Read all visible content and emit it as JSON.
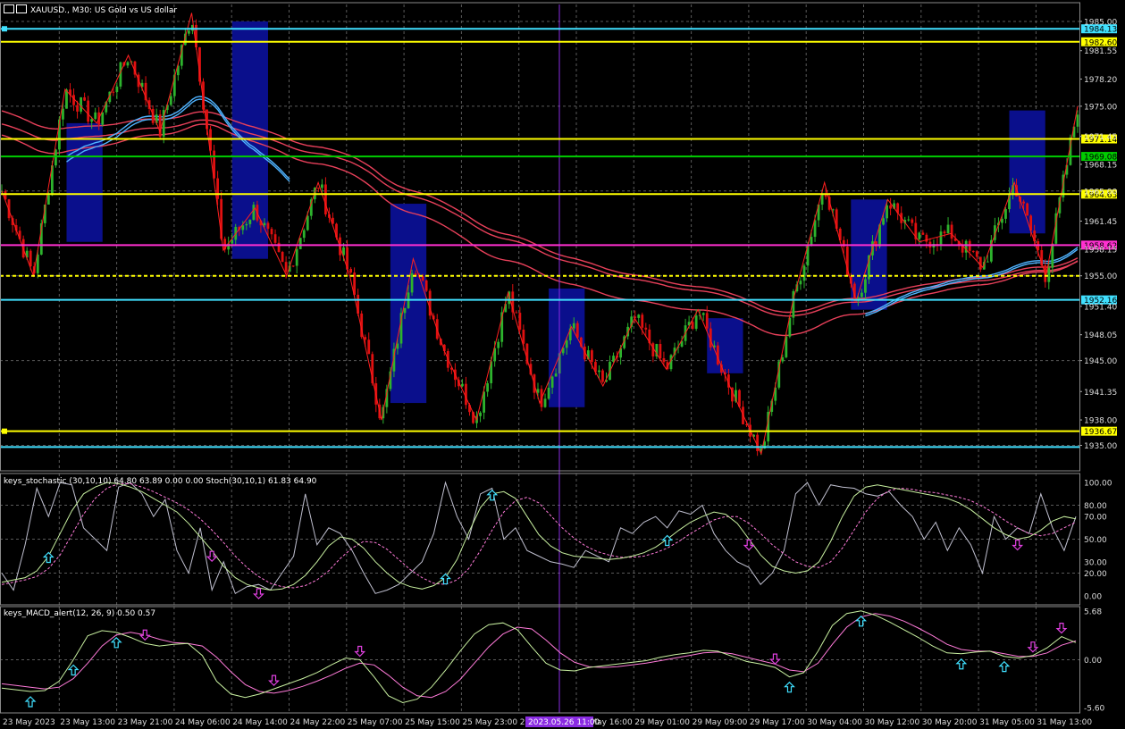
{
  "header": {
    "symbol": "XAUUSD.",
    "timeframe": "M30",
    "description": "US Gold vs US dollar",
    "title_sep": ", ",
    "desc_sep": ":  "
  },
  "colors": {
    "background": "#000000",
    "bull": "#2db32d",
    "bear": "#e01010",
    "ma_red": "#e8405a",
    "ma_blue": "#4fb3ff",
    "box": "#0a0f8c",
    "yellow_line": "#ffff00",
    "green_line": "#00cc00",
    "magenta_line": "#ff30d0",
    "cyan_line": "#40e0ff",
    "crosshair": "#8a2be2",
    "stoch_main": "#c8f0a0",
    "stoch_signal": "#ff7ad9",
    "stoch_raw": "#c0c0d0",
    "macd_main": "#c8f0a0",
    "macd_signal": "#ff7ad9",
    "arrow_up": "#40e0ff",
    "arrow_down": "#e040e0"
  },
  "chart_data": [
    {
      "type": "candlestick",
      "ylim": [
        1932,
        1987
      ],
      "y_ticks": [
        "1985.00",
        "1981.55",
        "1978.20",
        "1975.00",
        "1971.45",
        "1968.15",
        "1965.00",
        "1961.45",
        "1958.15",
        "1955.00",
        "1951.40",
        "1948.05",
        "1945.00",
        "1941.35",
        "1938.00",
        "1935.00"
      ],
      "x_ticks": [
        "23 May 2023",
        "23 May 13:00",
        "23 May 21:00",
        "24 May 06:00",
        "24 May 14:00",
        "24 May 22:00",
        "25 May 07:00",
        "25 May 15:00",
        "25 May 23:00",
        "26 May 08:00",
        "26 May 16:00",
        "29 May 01:00",
        "29 May 09:00",
        "29 May 17:00",
        "30 May 04:00",
        "30 May 12:00",
        "30 May 20:00",
        "31 May 05:00",
        "31 May 13:00"
      ],
      "crosshair_label": "2023.05.26 11:00",
      "zigzag": [
        1965,
        1955,
        1977,
        1973,
        1981,
        1972,
        1986,
        1958,
        1963,
        1955,
        1966,
        1955,
        1938,
        1957,
        1946,
        1938,
        1953,
        1940,
        1949,
        1942,
        1950,
        1944,
        1951,
        1942,
        1934,
        1952,
        1966,
        1952,
        1964,
        1959,
        1960,
        1956,
        1966,
        1955,
        1975
      ],
      "h_levels": [
        {
          "price": 1984.13,
          "label": "1984.13",
          "color": "#40e0ff",
          "label_bg": "#40e0ff",
          "label_color": "#000000"
        },
        {
          "price": 1982.6,
          "label": "1982.60",
          "color": "#ffff00",
          "label_bg": "#ffff00",
          "label_color": "#000000"
        },
        {
          "price": 1971.14,
          "label": "1971.14",
          "color": "#ffff00",
          "label_bg": "#ffff00",
          "label_color": "#000000"
        },
        {
          "price": 1969.08,
          "label": "1969.08",
          "color": "#00cc00",
          "label_bg": "#00cc00",
          "label_color": "#000000"
        },
        {
          "price": 1964.63,
          "label": "1964.63",
          "color": "#ffff00",
          "label_bg": "#ffff00",
          "label_color": "#000000"
        },
        {
          "price": 1958.62,
          "label": "1958.62",
          "color": "#ff30d0",
          "label_bg": "#ff30d0",
          "label_color": "#000000"
        },
        {
          "price": 1955.0,
          "label": "",
          "color": "#ffff00",
          "label_bg": "",
          "label_color": "",
          "dashed": true
        },
        {
          "price": 1952.16,
          "label": "1952.16",
          "color": "#40e0ff",
          "label_bg": "#40e0ff",
          "label_color": "#000000"
        },
        {
          "price": 1936.67,
          "label": "1936.67",
          "color": "#ffff00",
          "label_bg": "#ffff00",
          "label_color": "#000000"
        },
        {
          "price": 1934.8,
          "label": "",
          "color": "#40e0ff",
          "label_bg": "",
          "label_color": ""
        }
      ],
      "boxes": [
        {
          "from_bar": 18,
          "to_bar": 28,
          "high": 1973,
          "low": 1959
        },
        {
          "from_bar": 64,
          "to_bar": 74,
          "high": 1985,
          "low": 1957
        },
        {
          "from_bar": 108,
          "to_bar": 118,
          "high": 1963.5,
          "low": 1940
        },
        {
          "from_bar": 152,
          "to_bar": 162,
          "high": 1953.5,
          "low": 1939.5
        },
        {
          "from_bar": 196,
          "to_bar": 206,
          "high": 1950,
          "low": 1943.5
        },
        {
          "from_bar": 236,
          "to_bar": 246,
          "high": 1964,
          "low": 1951
        },
        {
          "from_bar": 280,
          "to_bar": 290,
          "high": 1974.5,
          "low": 1960
        }
      ]
    },
    {
      "type": "line",
      "name": "keys_stochastic (30,10,10) 64.80 63.89 0.00 0.00 Stoch(30,10,1) 61.83 64.90",
      "ylim": [
        -8,
        108
      ],
      "y_ticks": [
        "100.00",
        "80.00",
        "70.00",
        "50.00",
        "30.00",
        "20.00",
        "0.00"
      ],
      "main": [
        12,
        14,
        16,
        22,
        35,
        55,
        75,
        90,
        96,
        100,
        99,
        96,
        92,
        86,
        80,
        74,
        64,
        52,
        40,
        26,
        16,
        10,
        7,
        5,
        6,
        10,
        18,
        30,
        44,
        52,
        50,
        42,
        30,
        20,
        12,
        8,
        6,
        9,
        16,
        32,
        56,
        78,
        90,
        92,
        86,
        70,
        54,
        44,
        38,
        35,
        34,
        33,
        32,
        33,
        35,
        38,
        43,
        50,
        58,
        65,
        70,
        74,
        72,
        64,
        50,
        36,
        26,
        22,
        20,
        22,
        30,
        48,
        70,
        88,
        96,
        98,
        96,
        94,
        92,
        90,
        88,
        86,
        82,
        76,
        68,
        60,
        54,
        50,
        52,
        58,
        66,
        70,
        68
      ],
      "signal": [
        10,
        12,
        14,
        17,
        24,
        36,
        54,
        72,
        86,
        95,
        99,
        99,
        96,
        92,
        87,
        82,
        76,
        68,
        58,
        47,
        35,
        25,
        17,
        11,
        8,
        7,
        9,
        14,
        22,
        33,
        42,
        48,
        47,
        41,
        32,
        23,
        16,
        11,
        10,
        14,
        24,
        40,
        58,
        74,
        84,
        87,
        82,
        71,
        60,
        51,
        44,
        39,
        36,
        34,
        34,
        35,
        38,
        42,
        48,
        55,
        61,
        67,
        70,
        70,
        64,
        55,
        45,
        37,
        30,
        26,
        25,
        30,
        42,
        58,
        74,
        86,
        93,
        95,
        94,
        92,
        91,
        89,
        87,
        84,
        79,
        73,
        66,
        60,
        55,
        53,
        55,
        60,
        65
      ],
      "raw": [
        20,
        5,
        45,
        95,
        70,
        100,
        98,
        60,
        50,
        40,
        96,
        100,
        90,
        70,
        85,
        40,
        20,
        60,
        5,
        30,
        2,
        8,
        10,
        5,
        20,
        35,
        90,
        45,
        60,
        55,
        40,
        20,
        2,
        5,
        10,
        20,
        30,
        55,
        100,
        70,
        50,
        90,
        95,
        50,
        60,
        40,
        35,
        30,
        28,
        25,
        40,
        35,
        30,
        60,
        55,
        65,
        70,
        60,
        75,
        72,
        80,
        55,
        40,
        30,
        25,
        10,
        20,
        40,
        90,
        100,
        80,
        98,
        96,
        95,
        90,
        88,
        92,
        80,
        70,
        50,
        65,
        40,
        60,
        45,
        20,
        70,
        50,
        60,
        55,
        90,
        60,
        40,
        70
      ],
      "arrows_up": [
        4,
        38,
        42,
        57,
        98,
        102,
        135
      ],
      "arrows_down": [
        18,
        22,
        64,
        87,
        106,
        110
      ]
    },
    {
      "type": "line",
      "name": "keys_MACD_alert(12, 26, 9) 0.50 0.57",
      "ylim": [
        -6.2,
        6.2
      ],
      "y_ticks": [
        "5.68",
        "0.00",
        "-5.60"
      ],
      "main": [
        -3.3,
        -3.5,
        -3.7,
        -3.6,
        -2.5,
        0.0,
        2.8,
        3.4,
        3.2,
        2.6,
        1.9,
        1.6,
        1.8,
        1.9,
        0.5,
        -2.5,
        -4.0,
        -4.4,
        -4.0,
        -3.4,
        -2.8,
        -2.2,
        -1.5,
        -0.6,
        0.2,
        0.0,
        -2.0,
        -4.2,
        -5.0,
        -4.6,
        -3.2,
        -1.2,
        1.0,
        3.0,
        4.1,
        4.3,
        3.5,
        1.5,
        -0.4,
        -1.2,
        -1.3,
        -0.9,
        -0.7,
        -0.5,
        -0.3,
        -0.1,
        0.3,
        0.6,
        0.8,
        1.1,
        1.0,
        0.4,
        -0.2,
        -0.5,
        -0.9,
        -2.0,
        -1.5,
        1.0,
        4.0,
        5.4,
        5.7,
        5.2,
        4.4,
        3.5,
        2.6,
        1.6,
        0.8,
        0.7,
        0.9,
        1.0,
        0.4,
        0.2,
        0.5,
        1.4,
        2.7,
        2.0
      ],
      "signal": [
        -2.8,
        -3.0,
        -3.2,
        -3.4,
        -3.2,
        -2.2,
        -0.4,
        1.6,
        2.9,
        3.2,
        2.9,
        2.4,
        2.0,
        1.9,
        1.6,
        0.3,
        -1.4,
        -2.9,
        -3.7,
        -3.9,
        -3.6,
        -3.1,
        -2.5,
        -1.8,
        -1.0,
        -0.4,
        -0.6,
        -1.8,
        -3.2,
        -4.2,
        -4.4,
        -3.7,
        -2.3,
        -0.4,
        1.5,
        3.0,
        3.8,
        3.6,
        2.3,
        0.8,
        -0.3,
        -0.8,
        -0.9,
        -0.8,
        -0.6,
        -0.4,
        -0.1,
        0.2,
        0.5,
        0.8,
        0.9,
        0.7,
        0.3,
        -0.1,
        -0.5,
        -1.2,
        -1.4,
        -0.4,
        1.8,
        3.8,
        5.0,
        5.4,
        5.1,
        4.5,
        3.7,
        2.8,
        1.8,
        1.2,
        1.0,
        1.0,
        0.7,
        0.4,
        0.4,
        0.8,
        1.7,
        2.2
      ],
      "arrows_up": [
        2,
        5,
        8,
        55,
        60,
        67,
        70,
        77,
        81
      ],
      "arrows_down": [
        10,
        19,
        25,
        54,
        72,
        74,
        78,
        80,
        82
      ]
    }
  ]
}
